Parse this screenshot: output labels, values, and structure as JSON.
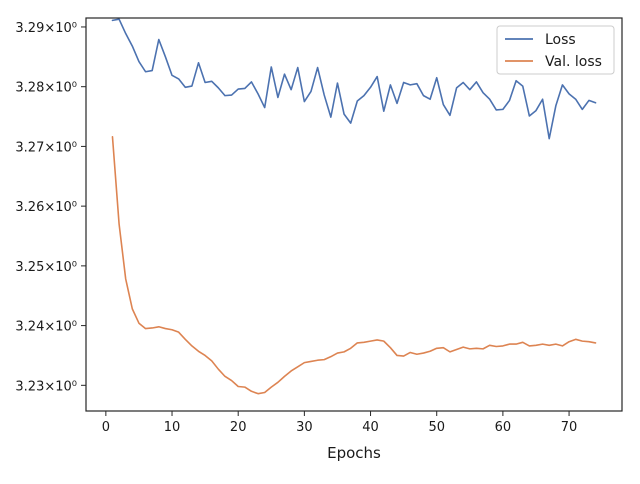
{
  "chart_data": {
    "type": "line",
    "xlabel": "Epochs",
    "ylabel": "",
    "title": "",
    "xlim": [
      -3,
      78
    ],
    "ylim": [
      3.2257,
      3.2915
    ],
    "xticks": [
      0,
      10,
      20,
      30,
      40,
      50,
      60,
      70
    ],
    "xtick_labels": [
      "0",
      "10",
      "20",
      "30",
      "40",
      "50",
      "60",
      "70"
    ],
    "yticks": [
      3.23,
      3.24,
      3.25,
      3.26,
      3.27,
      3.28,
      3.29
    ],
    "ytick_labels": [
      "3.23×10⁰",
      "3.24×10⁰",
      "3.25×10⁰",
      "3.26×10⁰",
      "3.27×10⁰",
      "3.28×10⁰",
      "3.29×10⁰"
    ],
    "legend_position": "top-right",
    "grid": false,
    "x": [
      1,
      2,
      3,
      4,
      5,
      6,
      7,
      8,
      9,
      10,
      11,
      12,
      13,
      14,
      15,
      16,
      17,
      18,
      19,
      20,
      21,
      22,
      23,
      24,
      25,
      26,
      27,
      28,
      29,
      30,
      31,
      32,
      33,
      34,
      35,
      36,
      37,
      38,
      39,
      40,
      41,
      42,
      43,
      44,
      45,
      46,
      47,
      48,
      49,
      50,
      51,
      52,
      53,
      54,
      55,
      56,
      57,
      58,
      59,
      60,
      61,
      62,
      63,
      64,
      65,
      66,
      67,
      68,
      69,
      70,
      71,
      72,
      73,
      74
    ],
    "series": [
      {
        "name": "Loss",
        "color": "#4c72b0",
        "values": [
          3.2911,
          3.2913,
          3.2889,
          3.2868,
          3.2842,
          3.2825,
          3.2827,
          3.2879,
          3.285,
          3.2819,
          3.2813,
          3.2799,
          3.2801,
          3.284,
          3.2807,
          3.2809,
          3.2798,
          3.2785,
          3.2786,
          3.2796,
          3.2797,
          3.2808,
          3.2788,
          3.2765,
          3.2833,
          3.2782,
          3.2821,
          3.2795,
          3.2832,
          3.2775,
          3.2792,
          3.2832,
          3.2786,
          3.2749,
          3.2806,
          3.2754,
          3.2739,
          3.2776,
          3.2785,
          3.2799,
          3.2817,
          3.2759,
          3.2803,
          3.2772,
          3.2807,
          3.2803,
          3.2805,
          3.2785,
          3.2779,
          3.2815,
          3.277,
          3.2752,
          3.2798,
          3.2807,
          3.2795,
          3.2808,
          3.279,
          3.2779,
          3.2761,
          3.2762,
          3.2777,
          3.281,
          3.2801,
          3.2751,
          3.276,
          3.2779,
          3.2713,
          3.2768,
          3.2803,
          3.2788,
          3.2779,
          3.2762,
          3.2777,
          3.2773
        ]
      },
      {
        "name": "Val. loss",
        "color": "#dd8452",
        "values": [
          3.2716,
          3.257,
          3.2478,
          3.2428,
          3.2404,
          3.2395,
          3.2396,
          3.2398,
          3.2395,
          3.2393,
          3.2389,
          3.2377,
          3.2366,
          3.2357,
          3.235,
          3.2341,
          3.2327,
          3.2315,
          3.2308,
          3.2298,
          3.2297,
          3.229,
          3.2286,
          3.2288,
          3.2297,
          3.2305,
          3.2315,
          3.2324,
          3.2331,
          3.2338,
          3.234,
          3.2342,
          3.2343,
          3.2348,
          3.2354,
          3.2356,
          3.2362,
          3.2371,
          3.2372,
          3.2374,
          3.2376,
          3.2374,
          3.2363,
          3.235,
          3.2349,
          3.2355,
          3.2352,
          3.2354,
          3.2357,
          3.2362,
          3.2363,
          3.2356,
          3.236,
          3.2364,
          3.2361,
          3.2362,
          3.2361,
          3.2367,
          3.2365,
          3.2366,
          3.2369,
          3.2369,
          3.2372,
          3.2366,
          3.2367,
          3.2369,
          3.2367,
          3.2369,
          3.2366,
          3.2373,
          3.2377,
          3.2374,
          3.2373,
          3.2371
        ]
      }
    ]
  }
}
